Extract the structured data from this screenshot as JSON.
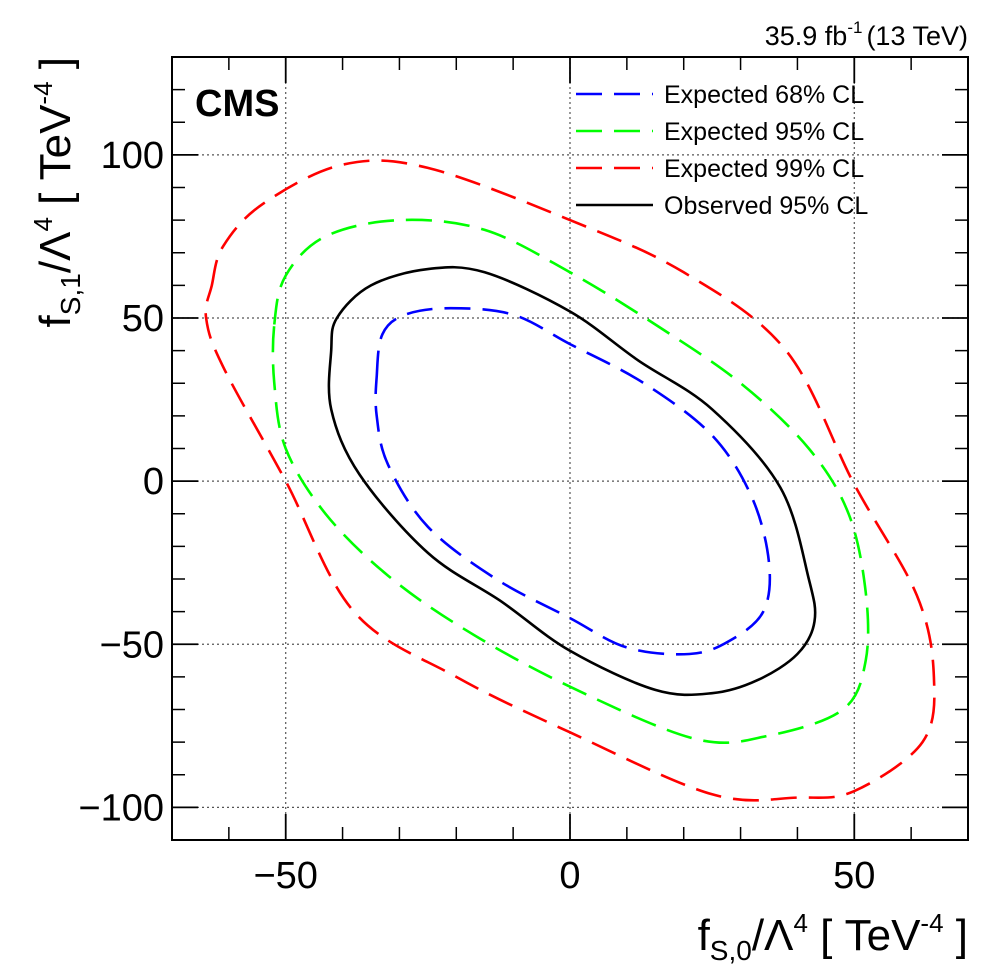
{
  "chart_data": {
    "type": "line",
    "title": "",
    "lumi_label": {
      "value": "35.9 fb",
      "exp": "-1",
      "energy": "(13 TeV)"
    },
    "experiment_label": "CMS",
    "xlabel": {
      "main": "f",
      "sub": "S,0",
      "mid": "/Λ",
      "pow": "4",
      "unit_open": " [ TeV",
      "unit_exp": "-4",
      "unit_close": " ]"
    },
    "ylabel": {
      "main": "f",
      "sub": "S,1",
      "mid": "/Λ",
      "pow": "4",
      "unit_open": " [ TeV",
      "unit_exp": "-4",
      "unit_close": " ]"
    },
    "xlim": [
      -70,
      70
    ],
    "ylim": [
      -110,
      130
    ],
    "x_ticks": [
      {
        "value": -50,
        "label": "−50"
      },
      {
        "value": 0,
        "label": "0"
      },
      {
        "value": 50,
        "label": "50"
      }
    ],
    "y_ticks": [
      {
        "value": -100,
        "label": "−100"
      },
      {
        "value": -50,
        "label": "−50"
      },
      {
        "value": 0,
        "label": "0"
      },
      {
        "value": 50,
        "label": "50"
      },
      {
        "value": 100,
        "label": "100"
      }
    ],
    "grid": true,
    "legend_position": "top-right",
    "series": [
      {
        "name": "Expected 68% CL",
        "color": "#0000ff",
        "style": "dashed",
        "points": [
          [
            -34,
            32
          ],
          [
            -33,
            45
          ],
          [
            -29,
            51
          ],
          [
            -21,
            53
          ],
          [
            -10,
            51
          ],
          [
            0,
            42
          ],
          [
            13,
            30
          ],
          [
            25,
            14
          ],
          [
            32,
            -5
          ],
          [
            35,
            -25
          ],
          [
            34,
            -40
          ],
          [
            28,
            -49
          ],
          [
            21,
            -53
          ],
          [
            10,
            -51
          ],
          [
            0,
            -42
          ],
          [
            -13,
            -30
          ],
          [
            -25,
            -14
          ],
          [
            -32,
            5
          ],
          [
            -34,
            20
          ],
          [
            -34,
            32
          ]
        ]
      },
      {
        "name": "Expected 95% CL",
        "color": "#00ff00",
        "style": "dashed",
        "points": [
          [
            -52,
            48
          ],
          [
            -50,
            63
          ],
          [
            -43,
            75
          ],
          [
            -30,
            80
          ],
          [
            -15,
            77
          ],
          [
            0,
            64
          ],
          [
            15,
            48
          ],
          [
            30,
            30
          ],
          [
            42,
            10
          ],
          [
            49,
            -10
          ],
          [
            52,
            -34
          ],
          [
            52,
            -55
          ],
          [
            48,
            -70
          ],
          [
            35,
            -78
          ],
          [
            22,
            -79
          ],
          [
            0,
            -63
          ],
          [
            -18,
            -46
          ],
          [
            -32,
            -29
          ],
          [
            -43,
            -10
          ],
          [
            -50,
            10
          ],
          [
            -52,
            30
          ],
          [
            -52,
            48
          ]
        ]
      },
      {
        "name": "Expected 99% CL",
        "color": "#ff0000",
        "style": "dashed",
        "points": [
          [
            -63,
            60
          ],
          [
            -61,
            72
          ],
          [
            -54,
            85
          ],
          [
            -40,
            97
          ],
          [
            -25,
            96
          ],
          [
            0,
            80
          ],
          [
            20,
            64
          ],
          [
            38,
            40
          ],
          [
            50,
            -1
          ],
          [
            61,
            -35
          ],
          [
            64,
            -60
          ],
          [
            62,
            -80
          ],
          [
            50,
            -95
          ],
          [
            40,
            -97
          ],
          [
            25,
            -96
          ],
          [
            0,
            -77
          ],
          [
            -20,
            -60
          ],
          [
            -38,
            -40
          ],
          [
            -50,
            0
          ],
          [
            -61,
            35
          ],
          [
            -64,
            50
          ],
          [
            -63,
            60
          ]
        ]
      },
      {
        "name": "Observed 95% CL",
        "color": "#000000",
        "style": "solid",
        "points": [
          [
            -42,
            40
          ],
          [
            -41,
            50
          ],
          [
            -35,
            60
          ],
          [
            -25,
            65
          ],
          [
            -15,
            64
          ],
          [
            0,
            52
          ],
          [
            12,
            37
          ],
          [
            25,
            22
          ],
          [
            37,
            -2
          ],
          [
            42,
            -30
          ],
          [
            43,
            -43
          ],
          [
            40,
            -53
          ],
          [
            33,
            -61
          ],
          [
            25,
            -65
          ],
          [
            15,
            -64
          ],
          [
            0,
            -52
          ],
          [
            -12,
            -37
          ],
          [
            -25,
            -22
          ],
          [
            -37,
            2
          ],
          [
            -42,
            22
          ],
          [
            -42,
            40
          ]
        ]
      }
    ]
  }
}
